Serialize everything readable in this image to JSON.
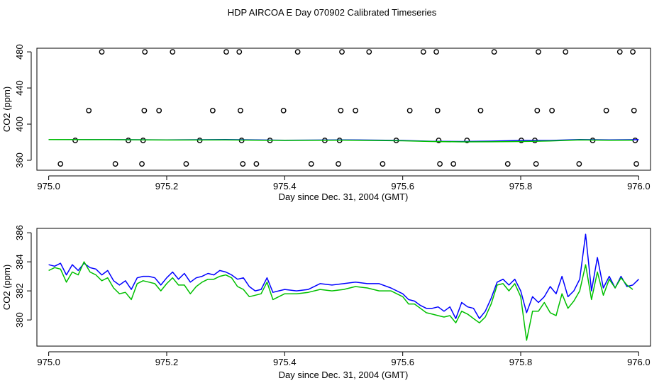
{
  "title": "HDP AIRCOA E  Day 070902  Calibrated Timeseries",
  "colors": {
    "blue": "#0000ff",
    "green": "#00bf00",
    "axis": "#000000",
    "marker": "#000000"
  },
  "chart_data": [
    {
      "type": "scatter",
      "title": "",
      "xlabel": "Day since Dec. 31, 2004 (GMT)",
      "ylabel": "CO2 (ppm)",
      "xlim": [
        974.98,
        976.02
      ],
      "ylim": [
        349,
        484
      ],
      "x_ticks": [
        "975.0",
        "975.2",
        "975.4",
        "975.6",
        "975.8",
        "976.0"
      ],
      "y_ticks": [
        "360",
        "400",
        "440",
        "480"
      ],
      "grid": false,
      "series": [
        {
          "kind": "markers",
          "color": "#000000",
          "points": [
            {
              "x": 975.02,
              "y": 356
            },
            {
              "x": 975.045,
              "y": 382
            },
            {
              "x": 975.068,
              "y": 415
            },
            {
              "x": 975.09,
              "y": 480
            },
            {
              "x": 975.113,
              "y": 356
            },
            {
              "x": 975.135,
              "y": 382
            },
            {
              "x": 975.158,
              "y": 356
            },
            {
              "x": 975.16,
              "y": 382
            },
            {
              "x": 975.162,
              "y": 415
            },
            {
              "x": 975.163,
              "y": 480
            },
            {
              "x": 975.187,
              "y": 415
            },
            {
              "x": 975.21,
              "y": 480
            },
            {
              "x": 975.233,
              "y": 356
            },
            {
              "x": 975.256,
              "y": 382
            },
            {
              "x": 975.278,
              "y": 415
            },
            {
              "x": 975.301,
              "y": 480
            },
            {
              "x": 975.323,
              "y": 480
            },
            {
              "x": 975.325,
              "y": 415
            },
            {
              "x": 975.327,
              "y": 382
            },
            {
              "x": 975.329,
              "y": 356
            },
            {
              "x": 975.352,
              "y": 356
            },
            {
              "x": 975.375,
              "y": 382
            },
            {
              "x": 975.398,
              "y": 415
            },
            {
              "x": 975.422,
              "y": 480
            },
            {
              "x": 975.445,
              "y": 356
            },
            {
              "x": 975.468,
              "y": 382
            },
            {
              "x": 975.491,
              "y": 356
            },
            {
              "x": 975.493,
              "y": 382
            },
            {
              "x": 975.495,
              "y": 415
            },
            {
              "x": 975.497,
              "y": 480
            },
            {
              "x": 975.52,
              "y": 415
            },
            {
              "x": 975.543,
              "y": 480
            },
            {
              "x": 975.566,
              "y": 356
            },
            {
              "x": 975.589,
              "y": 382
            },
            {
              "x": 975.612,
              "y": 415
            },
            {
              "x": 975.635,
              "y": 480
            },
            {
              "x": 975.657,
              "y": 480
            },
            {
              "x": 975.659,
              "y": 415
            },
            {
              "x": 975.661,
              "y": 382
            },
            {
              "x": 975.663,
              "y": 356
            },
            {
              "x": 975.686,
              "y": 356
            },
            {
              "x": 975.709,
              "y": 382
            },
            {
              "x": 975.732,
              "y": 415
            },
            {
              "x": 975.755,
              "y": 480
            },
            {
              "x": 975.778,
              "y": 356
            },
            {
              "x": 975.801,
              "y": 382
            },
            {
              "x": 975.824,
              "y": 382
            },
            {
              "x": 975.826,
              "y": 356
            },
            {
              "x": 975.828,
              "y": 415
            },
            {
              "x": 975.83,
              "y": 480
            },
            {
              "x": 975.853,
              "y": 415
            },
            {
              "x": 975.876,
              "y": 480
            },
            {
              "x": 975.899,
              "y": 356
            },
            {
              "x": 975.922,
              "y": 382
            },
            {
              "x": 975.945,
              "y": 415
            },
            {
              "x": 975.968,
              "y": 480
            },
            {
              "x": 975.99,
              "y": 480
            },
            {
              "x": 975.992,
              "y": 415
            },
            {
              "x": 975.994,
              "y": 382
            },
            {
              "x": 975.996,
              "y": 356
            }
          ]
        },
        {
          "kind": "line",
          "color": "#0000ff",
          "x": [
            975.0,
            975.1,
            975.2,
            975.3,
            975.4,
            975.5,
            975.6,
            975.65,
            975.7,
            975.75,
            975.8,
            975.85,
            975.9,
            975.95,
            976.0
          ],
          "y": [
            383,
            383,
            382.6,
            383,
            382.2,
            382.6,
            382,
            381,
            380.8,
            381.2,
            382,
            382,
            383,
            382.5,
            382.8
          ]
        },
        {
          "kind": "line",
          "color": "#00bf00",
          "x": [
            975.0,
            975.1,
            975.2,
            975.3,
            975.4,
            975.5,
            975.6,
            975.65,
            975.7,
            975.75,
            975.8,
            975.85,
            975.9,
            975.95,
            975.99
          ],
          "y": [
            383,
            382.8,
            382.4,
            382.6,
            382,
            382.3,
            381.6,
            380.8,
            380.4,
            380.5,
            380.8,
            381.4,
            382.6,
            382.2,
            382.3
          ]
        }
      ]
    },
    {
      "type": "line",
      "title": "",
      "xlabel": "Day since Dec. 31, 2004 (GMT)",
      "ylabel": "CO2 (ppm)",
      "xlim": [
        974.98,
        976.02
      ],
      "ylim": [
        378.2,
        386.3
      ],
      "x_ticks": [
        "975.0",
        "975.2",
        "975.4",
        "975.6",
        "975.8",
        "976.0"
      ],
      "y_ticks": [
        "380",
        "382",
        "384",
        "386"
      ],
      "grid": false,
      "series": [
        {
          "color": "#0000ff",
          "x": [
            975.0,
            975.01,
            975.02,
            975.03,
            975.04,
            975.05,
            975.06,
            975.07,
            975.08,
            975.09,
            975.1,
            975.11,
            975.12,
            975.13,
            975.14,
            975.15,
            975.16,
            975.17,
            975.18,
            975.19,
            975.2,
            975.21,
            975.22,
            975.23,
            975.24,
            975.25,
            975.26,
            975.27,
            975.28,
            975.29,
            975.3,
            975.31,
            975.32,
            975.33,
            975.34,
            975.35,
            975.36,
            975.37,
            975.38,
            975.39,
            975.4,
            975.42,
            975.44,
            975.46,
            975.48,
            975.5,
            975.52,
            975.54,
            975.56,
            975.58,
            975.6,
            975.61,
            975.62,
            975.63,
            975.64,
            975.65,
            975.66,
            975.67,
            975.68,
            975.69,
            975.7,
            975.71,
            975.72,
            975.73,
            975.74,
            975.75,
            975.76,
            975.77,
            975.78,
            975.79,
            975.8,
            975.81,
            975.82,
            975.83,
            975.84,
            975.85,
            975.86,
            975.87,
            975.88,
            975.89,
            975.9,
            975.91,
            975.92,
            975.93,
            975.94,
            975.95,
            975.96,
            975.97,
            975.98,
            975.99,
            976.0
          ],
          "y": [
            383.8,
            383.7,
            383.9,
            383.1,
            383.8,
            383.4,
            383.9,
            383.6,
            383.5,
            383.1,
            383.4,
            382.7,
            382.4,
            382.7,
            382.1,
            382.9,
            383.0,
            383.0,
            382.9,
            382.4,
            382.9,
            383.3,
            382.8,
            383.2,
            382.6,
            382.9,
            383.0,
            383.2,
            383.1,
            383.4,
            383.3,
            383.1,
            382.8,
            382.9,
            382.3,
            382.0,
            382.1,
            382.9,
            381.9,
            382.0,
            382.1,
            382.0,
            382.1,
            382.5,
            382.4,
            382.5,
            382.6,
            382.5,
            382.5,
            382.2,
            381.8,
            381.4,
            381.3,
            381.0,
            380.8,
            380.8,
            380.9,
            380.6,
            380.9,
            380.1,
            381.2,
            380.9,
            380.8,
            380.1,
            380.6,
            381.5,
            382.6,
            382.8,
            382.4,
            382.8,
            382.0,
            380.5,
            381.6,
            381.2,
            381.6,
            382.3,
            381.8,
            383.0,
            381.6,
            382.0,
            382.8,
            385.9,
            382.0,
            384.3,
            382.2,
            383.0,
            382.2,
            383.0,
            382.3,
            382.4,
            382.8
          ]
        },
        {
          "color": "#00bf00",
          "x": [
            975.0,
            975.01,
            975.02,
            975.03,
            975.04,
            975.05,
            975.06,
            975.07,
            975.08,
            975.09,
            975.1,
            975.11,
            975.12,
            975.13,
            975.14,
            975.15,
            975.16,
            975.17,
            975.18,
            975.19,
            975.2,
            975.21,
            975.22,
            975.23,
            975.24,
            975.25,
            975.26,
            975.27,
            975.28,
            975.29,
            975.3,
            975.31,
            975.32,
            975.33,
            975.34,
            975.35,
            975.36,
            975.37,
            975.38,
            975.39,
            975.4,
            975.42,
            975.44,
            975.46,
            975.48,
            975.5,
            975.52,
            975.54,
            975.56,
            975.58,
            975.6,
            975.61,
            975.62,
            975.63,
            975.64,
            975.65,
            975.66,
            975.67,
            975.68,
            975.69,
            975.7,
            975.71,
            975.72,
            975.73,
            975.74,
            975.75,
            975.76,
            975.77,
            975.78,
            975.79,
            975.8,
            975.81,
            975.82,
            975.83,
            975.84,
            975.85,
            975.86,
            975.87,
            975.88,
            975.89,
            975.9,
            975.91,
            975.92,
            975.93,
            975.94,
            975.95,
            975.96,
            975.97,
            975.98,
            975.99
          ],
          "y": [
            383.4,
            383.6,
            383.5,
            382.6,
            383.3,
            383.1,
            384.0,
            383.3,
            383.1,
            382.7,
            382.9,
            382.2,
            381.8,
            381.9,
            381.4,
            382.5,
            382.7,
            382.6,
            382.5,
            382.0,
            382.5,
            382.9,
            382.4,
            382.4,
            381.8,
            382.3,
            382.6,
            382.8,
            382.8,
            383.0,
            383.1,
            382.9,
            382.3,
            382.1,
            381.6,
            381.7,
            381.8,
            382.6,
            381.4,
            381.6,
            381.8,
            381.8,
            381.9,
            382.1,
            382.0,
            382.1,
            382.3,
            382.2,
            382.0,
            382.0,
            381.6,
            381.1,
            381.1,
            380.8,
            380.5,
            380.4,
            380.3,
            380.2,
            380.3,
            379.8,
            380.6,
            380.4,
            380.1,
            379.8,
            380.2,
            381.1,
            382.4,
            382.5,
            382.0,
            382.5,
            381.6,
            378.6,
            380.6,
            380.6,
            381.2,
            380.5,
            380.3,
            381.8,
            380.8,
            381.3,
            382.0,
            383.8,
            381.4,
            383.3,
            381.7,
            382.8,
            382.2,
            382.9,
            382.4,
            382.1
          ]
        }
      ]
    }
  ]
}
